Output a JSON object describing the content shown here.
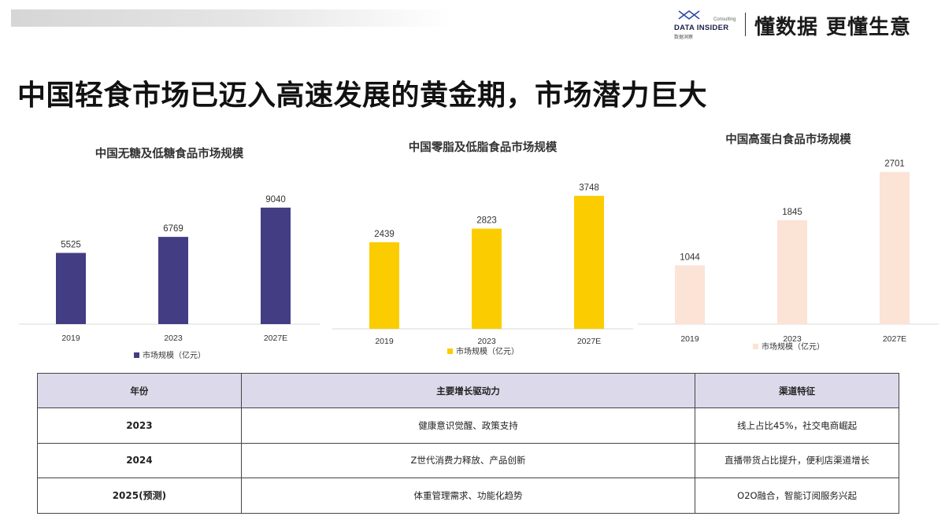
{
  "header": {
    "brand_name": "DATA INSIDER",
    "brand_tag": "Consulting",
    "brand_sub": "数据洞察",
    "slogan": "懂数据 更懂生意"
  },
  "title": "中国轻食市场已迈入高速发展的黄金期，市场潜力巨大",
  "chart_data": [
    {
      "type": "bar",
      "title": "中国无糖及低糖食品市场规模",
      "categories": [
        "2019",
        "2023",
        "2027E"
      ],
      "series": [
        {
          "name": "市场规模（亿元）",
          "values": [
            5525,
            6769,
            9040
          ]
        }
      ],
      "ylim": [
        0,
        10500
      ],
      "color": "#433e83",
      "legend_position": "bottom"
    },
    {
      "type": "bar",
      "title": "中国零脂及低脂食品市场规模",
      "categories": [
        "2019",
        "2023",
        "2027E"
      ],
      "series": [
        {
          "name": "市场规模（亿元）",
          "values": [
            2439,
            2823,
            3748
          ]
        }
      ],
      "ylim": [
        0,
        4300
      ],
      "color": "#fbcd00",
      "legend_position": "bottom"
    },
    {
      "type": "bar",
      "title": "中国高蛋白食品市场规模",
      "categories": [
        "2019",
        "2023",
        "2027E"
      ],
      "series": [
        {
          "name": "市场规模（亿元）",
          "values": [
            1044,
            1845,
            2701
          ]
        }
      ],
      "ylim": [
        0,
        2850
      ],
      "color": "#fbe3d6",
      "legend_position": "bottom"
    }
  ],
  "table": {
    "headers": [
      "年份",
      "主要增长驱动力",
      "渠道特征"
    ],
    "rows": [
      [
        "2023",
        "健康意识觉醒、政策支持",
        "线上占比45%，社交电商崛起"
      ],
      [
        "2024",
        "Z世代消费力释放、产品创新",
        "直播带货占比提升，便利店渠道增长"
      ],
      [
        "2025(预测)",
        "体重管理需求、功能化趋势",
        "O2O融合，智能订阅服务兴起"
      ]
    ]
  }
}
